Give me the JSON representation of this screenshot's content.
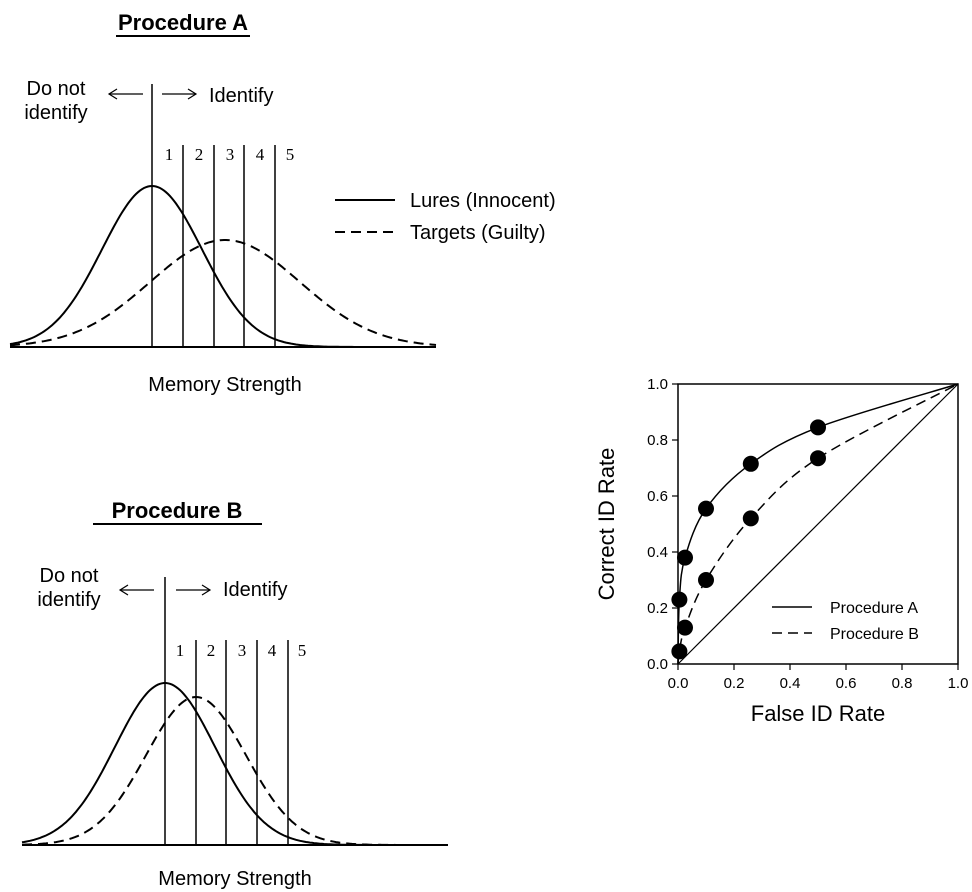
{
  "procedure_a": {
    "title": "Procedure A",
    "left_label_line1": "Do not",
    "left_label_line2": "identify",
    "right_label": "Identify",
    "criteria": [
      "1",
      "2",
      "3",
      "4",
      "5"
    ],
    "x_label": "Memory Strength",
    "legend": {
      "lures": "Lures (Innocent)",
      "targets": "Targets (Guilty)"
    }
  },
  "procedure_b": {
    "title": "Procedure B",
    "left_label_line1": "Do not",
    "left_label_line2": "identify",
    "right_label": "Identify",
    "criteria": [
      "1",
      "2",
      "3",
      "4",
      "5"
    ],
    "x_label": "Memory Strength"
  },
  "chart_data": {
    "type": "scatter",
    "xlabel": "False ID Rate",
    "ylabel": "Correct ID Rate",
    "xlim": [
      0,
      1
    ],
    "ylim": [
      0,
      1
    ],
    "xticks": [
      "0.0",
      "0.2",
      "0.4",
      "0.6",
      "0.8",
      "1.0"
    ],
    "yticks": [
      "0.0",
      "0.2",
      "0.4",
      "0.6",
      "0.8",
      "1.0"
    ],
    "legend_position": "bottom-right",
    "series": [
      {
        "name": "Procedure A",
        "line_style": "solid",
        "points": [
          [
            0.005,
            0.23
          ],
          [
            0.025,
            0.38
          ],
          [
            0.1,
            0.555
          ],
          [
            0.26,
            0.715
          ],
          [
            0.5,
            0.845
          ]
        ]
      },
      {
        "name": "Procedure B",
        "line_style": "dashed",
        "points": [
          [
            0.005,
            0.045
          ],
          [
            0.025,
            0.13
          ],
          [
            0.1,
            0.3
          ],
          [
            0.26,
            0.52
          ],
          [
            0.5,
            0.735
          ]
        ]
      }
    ],
    "reference_line": [
      [
        0,
        0
      ],
      [
        1,
        1
      ]
    ]
  }
}
